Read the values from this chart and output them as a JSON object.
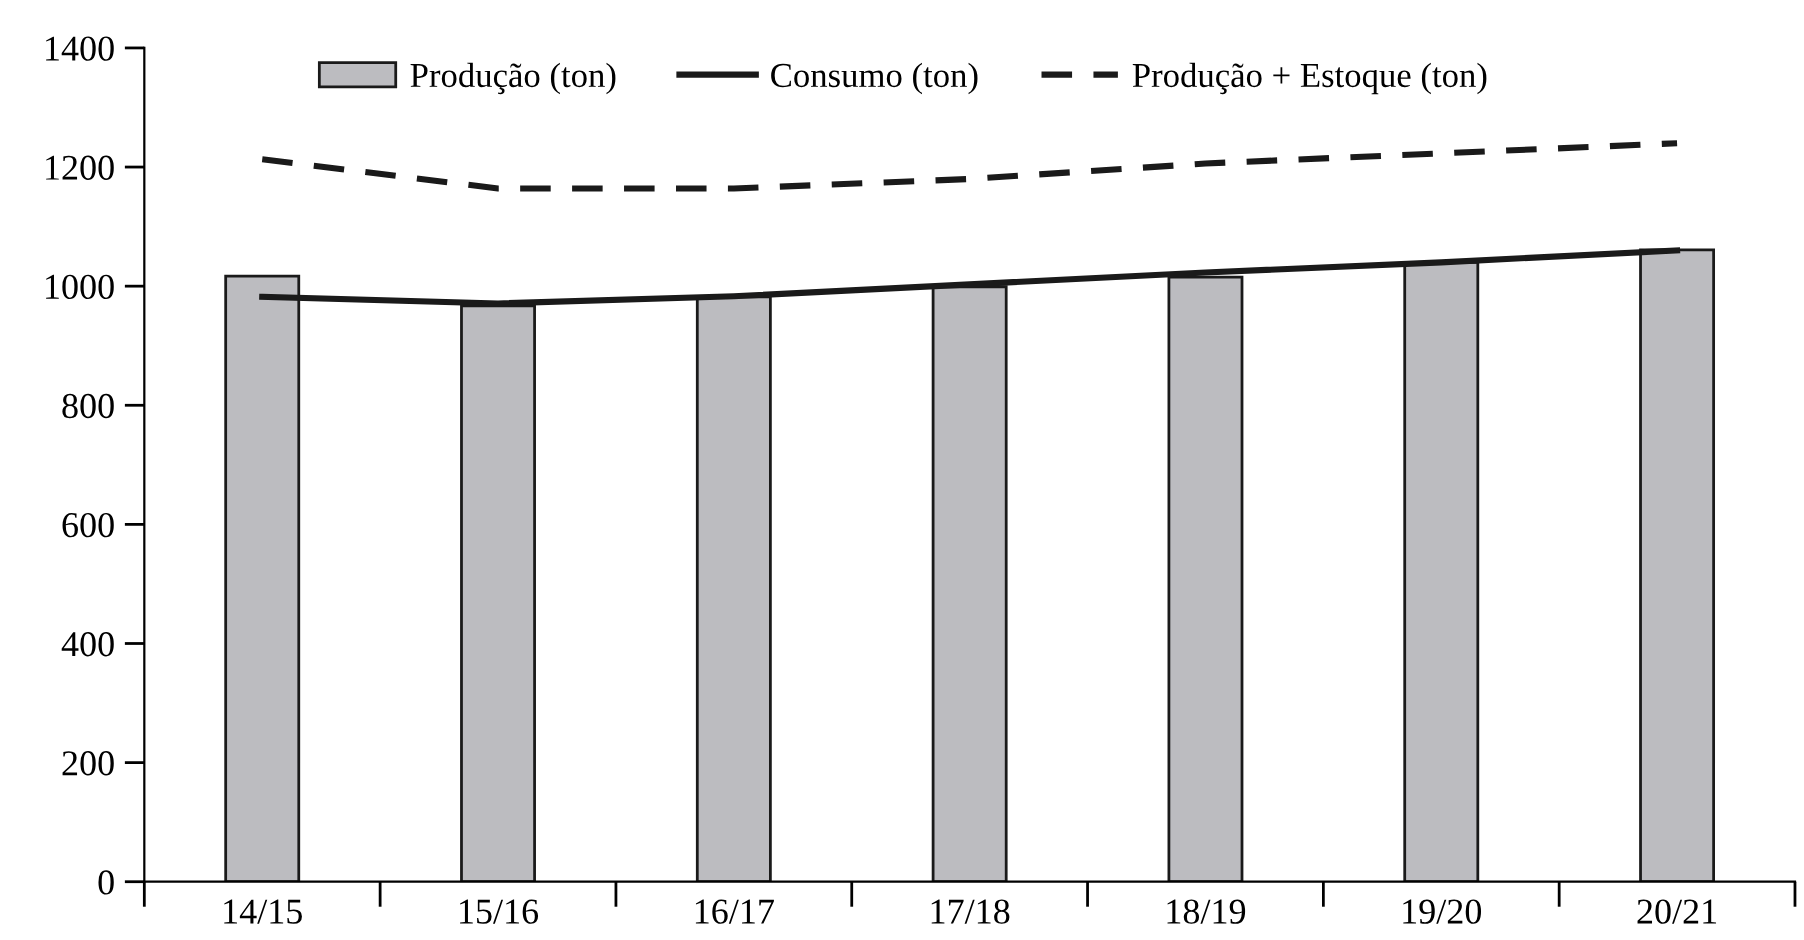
{
  "chart_data": {
    "type": "bar",
    "categories": [
      "14/15",
      "15/16",
      "16/17",
      "17/18",
      "18/19",
      "19/20",
      "20/21"
    ],
    "series": [
      {
        "name": "Produção (ton)",
        "color": "#bcbcc0",
        "values": [
          1017,
          967,
          982,
          999,
          1015,
          1040,
          1061
        ]
      },
      {
        "name": "Consumo (ton)",
        "type": "line",
        "color": "#1a1a1a",
        "line_style": "solid",
        "values": [
          982,
          971,
          983,
          1003,
          1023,
          1040,
          1060
        ]
      },
      {
        "name": "Produção + Estoque (ton)",
        "type": "line",
        "color": "#1a1a1a",
        "line_style": "dashed",
        "values": [
          1213,
          1164,
          1164,
          1180,
          1206,
          1223,
          1240
        ]
      }
    ],
    "ylim": [
      0,
      1400
    ],
    "yticks": [
      0,
      200,
      400,
      600,
      800,
      1000,
      1200,
      1400
    ],
    "grid": false,
    "legend": "top",
    "marker": "none"
  }
}
